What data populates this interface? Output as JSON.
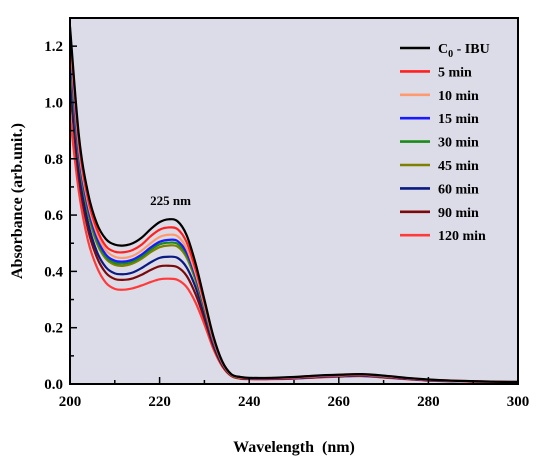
{
  "chart_data": {
    "type": "line",
    "title": "",
    "xlabel": "Wavelength (nm)",
    "ylabel": "Absorbance (arb.unit.)",
    "xlim": [
      200,
      300
    ],
    "ylim": [
      0,
      1.3
    ],
    "x_ticks": [
      200,
      220,
      240,
      260,
      280,
      300
    ],
    "y_ticks": [
      0.0,
      0.2,
      0.4,
      0.6,
      0.8,
      1.0,
      1.2
    ],
    "x_tick_labels": [
      "200",
      "220",
      "240",
      "260",
      "280",
      "300"
    ],
    "y_tick_labels": [
      "0.0",
      "0.2",
      "0.4",
      "0.6",
      "0.8",
      "1.0",
      "1.2"
    ],
    "grid": false,
    "plot_background": "#dcdce8",
    "legend_position": "top-right",
    "annotation": {
      "text": "225 nm",
      "x": 222,
      "y": 0.635
    },
    "x": [
      200,
      202,
      204,
      206,
      208,
      210,
      212,
      214,
      216,
      218,
      220,
      222,
      224,
      226,
      228,
      230,
      232,
      234,
      236,
      238,
      240,
      245,
      250,
      255,
      260,
      265,
      270,
      275,
      280,
      285,
      290,
      295,
      300
    ],
    "series": [
      {
        "name": "C0 - IBU",
        "name_main": "C",
        "name_sub": "0",
        "name_rest": " - IBU",
        "color": "#000000",
        "values": [
          1.27,
          0.88,
          0.68,
          0.57,
          0.515,
          0.495,
          0.492,
          0.5,
          0.52,
          0.55,
          0.575,
          0.585,
          0.578,
          0.53,
          0.43,
          0.3,
          0.17,
          0.08,
          0.035,
          0.025,
          0.022,
          0.022,
          0.025,
          0.03,
          0.033,
          0.035,
          0.03,
          0.022,
          0.016,
          0.012,
          0.01,
          0.008,
          0.007
        ]
      },
      {
        "name": "5 min",
        "color": "#ff2020",
        "values": [
          1.25,
          0.86,
          0.66,
          0.55,
          0.49,
          0.47,
          0.468,
          0.476,
          0.495,
          0.525,
          0.548,
          0.556,
          0.55,
          0.505,
          0.41,
          0.29,
          0.165,
          0.078,
          0.034,
          0.024,
          0.021,
          0.021,
          0.024,
          0.029,
          0.032,
          0.034,
          0.029,
          0.021,
          0.015,
          0.012,
          0.01,
          0.008,
          0.007
        ]
      },
      {
        "name": "10 min",
        "color": "#ff9a70",
        "values": [
          1.23,
          0.84,
          0.645,
          0.535,
          0.475,
          0.452,
          0.448,
          0.455,
          0.474,
          0.5,
          0.522,
          0.53,
          0.525,
          0.482,
          0.395,
          0.28,
          0.16,
          0.076,
          0.033,
          0.023,
          0.021,
          0.021,
          0.023,
          0.028,
          0.031,
          0.033,
          0.028,
          0.021,
          0.015,
          0.011,
          0.009,
          0.008,
          0.007
        ]
      },
      {
        "name": "15 min",
        "color": "#1a1aff",
        "values": [
          1.2,
          0.82,
          0.63,
          0.52,
          0.46,
          0.438,
          0.435,
          0.442,
          0.46,
          0.485,
          0.505,
          0.512,
          0.508,
          0.468,
          0.385,
          0.275,
          0.157,
          0.075,
          0.033,
          0.023,
          0.02,
          0.02,
          0.022,
          0.027,
          0.03,
          0.032,
          0.027,
          0.02,
          0.014,
          0.011,
          0.009,
          0.008,
          0.007
        ]
      },
      {
        "name": "30 min",
        "color": "#1a8a1a",
        "values": [
          1.18,
          0.81,
          0.62,
          0.51,
          0.452,
          0.43,
          0.428,
          0.435,
          0.452,
          0.477,
          0.496,
          0.502,
          0.498,
          0.46,
          0.378,
          0.27,
          0.155,
          0.074,
          0.032,
          0.022,
          0.02,
          0.02,
          0.022,
          0.027,
          0.03,
          0.032,
          0.027,
          0.02,
          0.014,
          0.011,
          0.009,
          0.008,
          0.007
        ]
      },
      {
        "name": "45 min",
        "color": "#808000",
        "values": [
          1.16,
          0.8,
          0.61,
          0.5,
          0.445,
          0.423,
          0.42,
          0.428,
          0.445,
          0.468,
          0.486,
          0.492,
          0.488,
          0.45,
          0.37,
          0.265,
          0.152,
          0.073,
          0.032,
          0.022,
          0.02,
          0.02,
          0.022,
          0.026,
          0.029,
          0.031,
          0.026,
          0.02,
          0.014,
          0.011,
          0.009,
          0.008,
          0.007
        ]
      },
      {
        "name": "60 min",
        "color": "#0a1a80",
        "values": [
          1.1,
          0.76,
          0.575,
          0.47,
          0.415,
          0.393,
          0.39,
          0.396,
          0.412,
          0.432,
          0.448,
          0.452,
          0.448,
          0.415,
          0.345,
          0.248,
          0.143,
          0.07,
          0.031,
          0.021,
          0.019,
          0.019,
          0.021,
          0.025,
          0.028,
          0.03,
          0.025,
          0.019,
          0.013,
          0.01,
          0.009,
          0.008,
          0.007
        ]
      },
      {
        "name": "90 min",
        "color": "#7a0a0a",
        "values": [
          1.05,
          0.73,
          0.55,
          0.45,
          0.395,
          0.373,
          0.37,
          0.375,
          0.388,
          0.405,
          0.418,
          0.42,
          0.415,
          0.385,
          0.32,
          0.232,
          0.135,
          0.066,
          0.03,
          0.02,
          0.018,
          0.018,
          0.02,
          0.024,
          0.027,
          0.029,
          0.024,
          0.018,
          0.013,
          0.01,
          0.009,
          0.008,
          0.007
        ]
      },
      {
        "name": "120 min",
        "color": "#ff3a3a",
        "values": [
          0.95,
          0.68,
          0.51,
          0.415,
          0.36,
          0.338,
          0.335,
          0.34,
          0.35,
          0.362,
          0.372,
          0.374,
          0.37,
          0.345,
          0.29,
          0.212,
          0.125,
          0.062,
          0.028,
          0.019,
          0.017,
          0.017,
          0.019,
          0.023,
          0.026,
          0.028,
          0.023,
          0.017,
          0.012,
          0.01,
          0.008,
          0.007,
          0.006
        ]
      }
    ]
  }
}
